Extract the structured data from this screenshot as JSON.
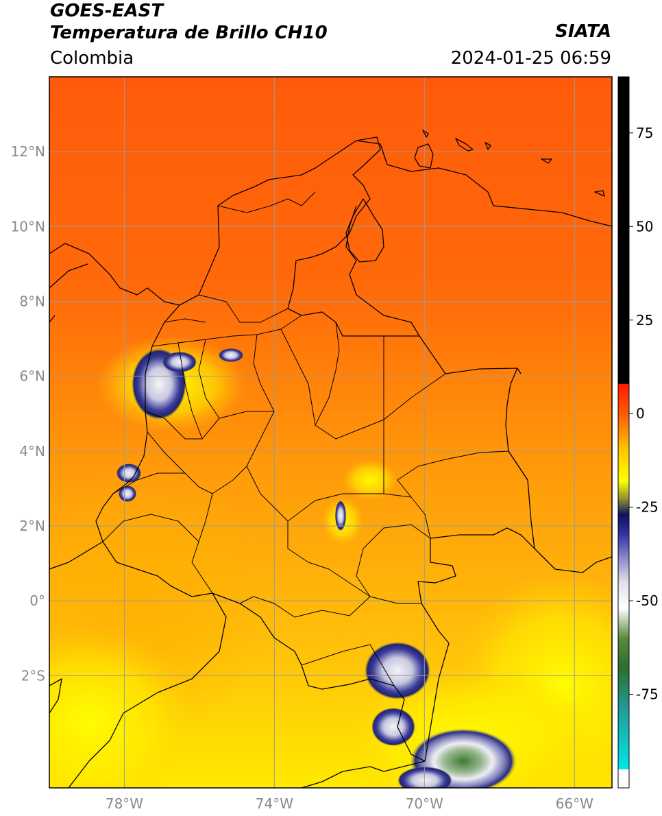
{
  "header": {
    "title_line1": "GOES-EAST",
    "title_line2": "Temperatura de Brillo CH10",
    "region": "Colombia",
    "organization": "SIATA",
    "timestamp": "2024-01-25 06:59"
  },
  "map": {
    "lon_range": [
      -80,
      -65
    ],
    "lat_range": [
      -5,
      14
    ],
    "lat_ticks": [
      {
        "value": 12,
        "label": "12°N"
      },
      {
        "value": 10,
        "label": "10°N"
      },
      {
        "value": 8,
        "label": "8°N"
      },
      {
        "value": 6,
        "label": "6°N"
      },
      {
        "value": 4,
        "label": "4°N"
      },
      {
        "value": 2,
        "label": "2°N"
      },
      {
        "value": 0,
        "label": "0°"
      },
      {
        "value": -2,
        "label": "2°S"
      }
    ],
    "lon_ticks": [
      {
        "value": -78,
        "label": "78°W"
      },
      {
        "value": -74,
        "label": "74°W"
      },
      {
        "value": -70,
        "label": "70°W"
      },
      {
        "value": -66,
        "label": "66°W"
      }
    ],
    "gridlines": true,
    "colors": {
      "north_warm": "#ff5a0a",
      "mid_warm": "#ff8c0a",
      "south_warm": "#ffd800",
      "cold_cloud": "#2b2f8e",
      "cold_core": "#f0f0f0",
      "cold_green": "#5a8a3a",
      "border": "#000000",
      "grid": "#9a9a9a"
    }
  },
  "colorbar": {
    "range": [
      -100,
      90
    ],
    "ticks": [
      {
        "value": 75,
        "label": "75"
      },
      {
        "value": 50,
        "label": "50"
      },
      {
        "value": 25,
        "label": "25"
      },
      {
        "value": 0,
        "label": "0"
      },
      {
        "value": -25,
        "label": "-25"
      },
      {
        "value": -50,
        "label": "-50"
      },
      {
        "value": -75,
        "label": "-75"
      }
    ],
    "stops": [
      {
        "value": 90,
        "color": "#000000"
      },
      {
        "value": 8,
        "color": "#000000"
      },
      {
        "value": 7.9,
        "color": "#ff1a00"
      },
      {
        "value": 0,
        "color": "#ff5a00"
      },
      {
        "value": -10,
        "color": "#ffc800"
      },
      {
        "value": -18,
        "color": "#ffff00"
      },
      {
        "value": -23,
        "color": "#8a8a30"
      },
      {
        "value": -27,
        "color": "#101060"
      },
      {
        "value": -32,
        "color": "#3030a0"
      },
      {
        "value": -45,
        "color": "#e0e0ee"
      },
      {
        "value": -52,
        "color": "#ffffff"
      },
      {
        "value": -60,
        "color": "#5a8a3a"
      },
      {
        "value": -68,
        "color": "#2a7030"
      },
      {
        "value": -80,
        "color": "#20a0a0"
      },
      {
        "value": -95,
        "color": "#00e8e8"
      },
      {
        "value": -95.1,
        "color": "#ffffff"
      },
      {
        "value": -100,
        "color": "#ffffff"
      }
    ]
  }
}
